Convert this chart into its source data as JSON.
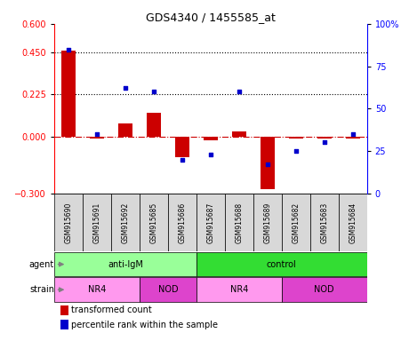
{
  "title": "GDS4340 / 1455585_at",
  "samples": [
    "GSM915690",
    "GSM915691",
    "GSM915692",
    "GSM915685",
    "GSM915686",
    "GSM915687",
    "GSM915688",
    "GSM915689",
    "GSM915682",
    "GSM915683",
    "GSM915684"
  ],
  "transformed_count": [
    0.46,
    -0.01,
    0.07,
    0.13,
    -0.11,
    -0.02,
    0.03,
    -0.28,
    -0.01,
    -0.01,
    -0.01
  ],
  "percentile_rank": [
    85,
    35,
    62,
    60,
    20,
    23,
    60,
    17,
    25,
    30,
    35
  ],
  "agent_groups": [
    {
      "label": "anti-IgM",
      "start": 0,
      "end": 4,
      "color": "#99FF99"
    },
    {
      "label": "control",
      "start": 5,
      "end": 10,
      "color": "#33DD33"
    }
  ],
  "strain_groups": [
    {
      "label": "NR4",
      "start": 0,
      "end": 2,
      "color": "#FF99EE"
    },
    {
      "label": "NOD",
      "start": 3,
      "end": 4,
      "color": "#DD44CC"
    },
    {
      "label": "NR4",
      "start": 5,
      "end": 7,
      "color": "#FF99EE"
    },
    {
      "label": "NOD",
      "start": 8,
      "end": 10,
      "color": "#DD44CC"
    }
  ],
  "ylim_left": [
    -0.3,
    0.6
  ],
  "ylim_right": [
    0,
    100
  ],
  "yticks_left": [
    -0.3,
    0,
    0.225,
    0.45,
    0.6
  ],
  "yticks_right": [
    0,
    25,
    50,
    75,
    100
  ],
  "hlines": [
    0.45,
    0.225
  ],
  "bar_color": "#CC0000",
  "scatter_color": "#0000CC",
  "zero_line_color": "#CC0000",
  "background_color": "#FFFFFF",
  "legend_bar_label": "transformed count",
  "legend_scatter_label": "percentile rank within the sample",
  "sample_box_color": "#D8D8D8",
  "left_label_color": "#444444"
}
